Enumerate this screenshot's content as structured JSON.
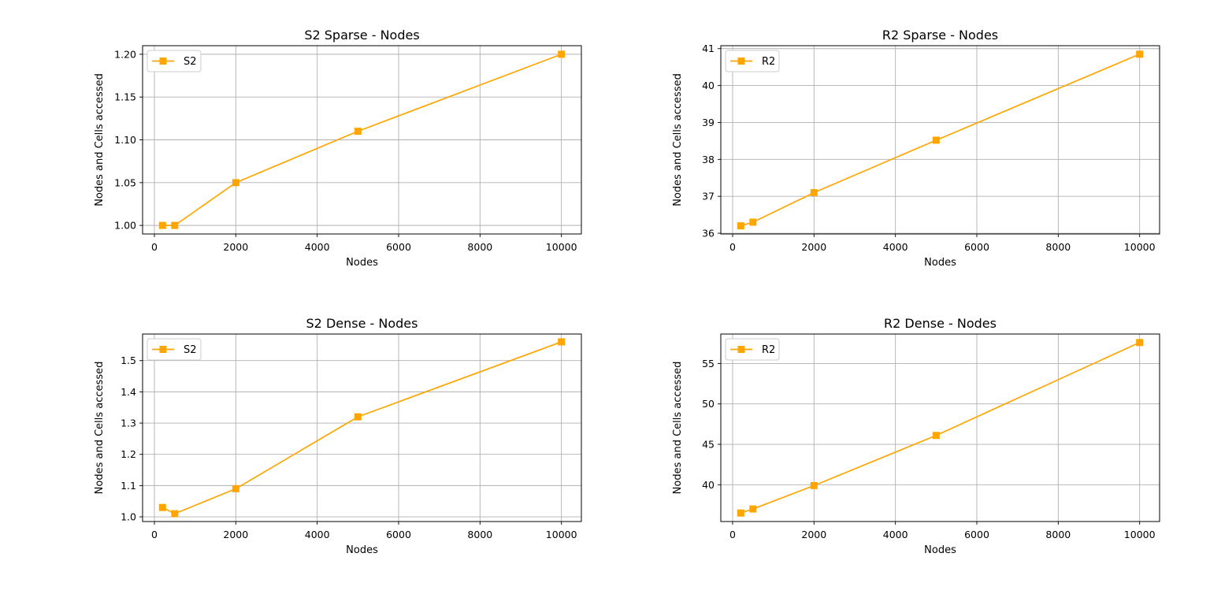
{
  "colors": {
    "series": "#ffa500",
    "grid": "#b0b0b0",
    "axes": "#000000",
    "legend_border": "#cccccc"
  },
  "chart_data": [
    {
      "type": "line",
      "title": "S2 Sparse - Nodes",
      "xlabel": "Nodes",
      "ylabel": "Nodes and Cells accessed",
      "x": [
        200,
        500,
        2000,
        5000,
        10000
      ],
      "series": [
        {
          "name": "S2",
          "values": [
            1.0,
            1.0,
            1.05,
            1.11,
            1.2
          ],
          "marker": "square"
        }
      ],
      "xlim": [
        -290,
        10490
      ],
      "ylim": [
        0.99,
        1.21
      ],
      "xticks": [
        0,
        2000,
        4000,
        6000,
        8000,
        10000
      ],
      "xticklabels": [
        "0",
        "2000",
        "4000",
        "6000",
        "8000",
        "10000"
      ],
      "yticks": [
        1.0,
        1.05,
        1.1,
        1.15,
        1.2
      ],
      "yticklabels": [
        "1.00",
        "1.05",
        "1.10",
        "1.15",
        "1.20"
      ],
      "grid": true,
      "legend": "upper left"
    },
    {
      "type": "line",
      "title": "R2 Sparse - Nodes",
      "xlabel": "Nodes",
      "ylabel": "Nodes and Cells accessed",
      "x": [
        200,
        500,
        2000,
        5000,
        10000
      ],
      "series": [
        {
          "name": "R2",
          "values": [
            36.2,
            36.3,
            37.1,
            38.52,
            40.85
          ],
          "marker": "square"
        }
      ],
      "xlim": [
        -290,
        10490
      ],
      "ylim": [
        35.98,
        41.08
      ],
      "xticks": [
        0,
        2000,
        4000,
        6000,
        8000,
        10000
      ],
      "xticklabels": [
        "0",
        "2000",
        "4000",
        "6000",
        "8000",
        "10000"
      ],
      "yticks": [
        36,
        37,
        38,
        39,
        40,
        41
      ],
      "yticklabels": [
        "36",
        "37",
        "38",
        "39",
        "40",
        "41"
      ],
      "grid": true,
      "legend": "upper left"
    },
    {
      "type": "line",
      "title": "S2 Dense - Nodes",
      "xlabel": "Nodes",
      "ylabel": "Nodes and Cells accessed",
      "x": [
        200,
        500,
        2000,
        5000,
        10000
      ],
      "series": [
        {
          "name": "S2",
          "values": [
            1.03,
            1.01,
            1.09,
            1.32,
            1.56
          ],
          "marker": "square"
        }
      ],
      "xlim": [
        -290,
        10490
      ],
      "ylim": [
        0.985,
        1.585
      ],
      "xticks": [
        0,
        2000,
        4000,
        6000,
        8000,
        10000
      ],
      "xticklabels": [
        "0",
        "2000",
        "4000",
        "6000",
        "8000",
        "10000"
      ],
      "yticks": [
        1.0,
        1.1,
        1.2,
        1.3,
        1.4,
        1.5
      ],
      "yticklabels": [
        "1.0",
        "1.1",
        "1.2",
        "1.3",
        "1.4",
        "1.5"
      ],
      "grid": true,
      "legend": "upper left"
    },
    {
      "type": "line",
      "title": "R2 Dense - Nodes",
      "xlabel": "Nodes",
      "ylabel": "Nodes and Cells accessed",
      "x": [
        200,
        500,
        2000,
        5000,
        10000
      ],
      "series": [
        {
          "name": "R2",
          "values": [
            36.5,
            37.0,
            39.9,
            46.1,
            57.6
          ],
          "marker": "square"
        }
      ],
      "xlim": [
        -290,
        10490
      ],
      "ylim": [
        35.45,
        58.65
      ],
      "xticks": [
        0,
        2000,
        4000,
        6000,
        8000,
        10000
      ],
      "xticklabels": [
        "0",
        "2000",
        "4000",
        "6000",
        "8000",
        "10000"
      ],
      "yticks": [
        40,
        45,
        50,
        55
      ],
      "yticklabels": [
        "40",
        "45",
        "50",
        "55"
      ],
      "grid": true,
      "legend": "upper left"
    }
  ]
}
